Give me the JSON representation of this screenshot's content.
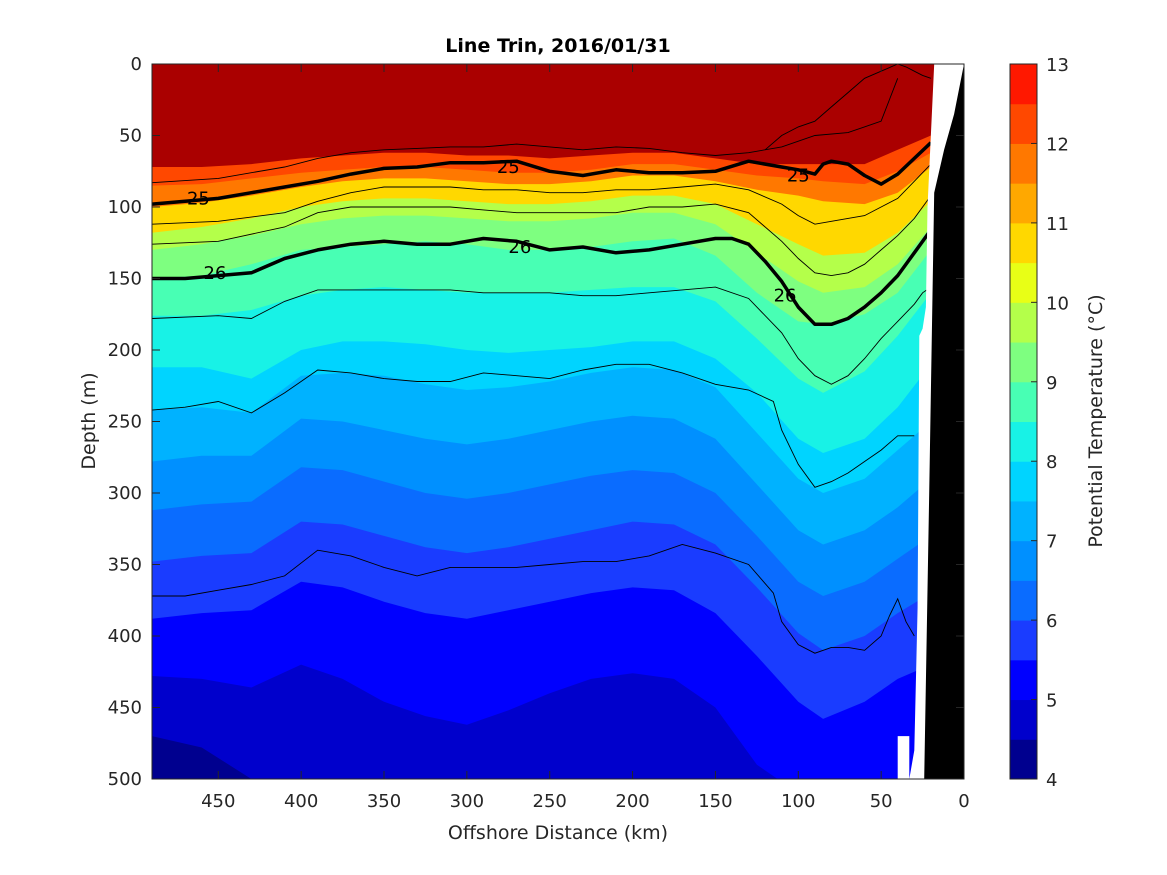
{
  "chart_data": {
    "type": "heatmap",
    "title": "Line Trin, 2016/01/31",
    "xlabel": "Offshore Distance (km)",
    "ylabel": "Depth (m)",
    "xlim": [
      490,
      0
    ],
    "ylim": [
      0,
      500
    ],
    "y_reversed": true,
    "x_ticks": [
      450,
      400,
      350,
      300,
      250,
      200,
      150,
      100,
      50,
      0
    ],
    "y_ticks": [
      0,
      50,
      100,
      150,
      200,
      250,
      300,
      350,
      400,
      450,
      500
    ],
    "colorbar": {
      "label": "Potential Temperature (°C)",
      "range": [
        4,
        13
      ],
      "step": 0.5,
      "ticks": [
        4,
        5,
        6,
        7,
        8,
        9,
        10,
        11,
        12,
        13
      ],
      "colors": [
        "#00008f",
        "#0000cc",
        "#0000ff",
        "#1a3cff",
        "#0a6cff",
        "#0090ff",
        "#00b2ff",
        "#00d4ff",
        "#18f2e6",
        "#48ffb4",
        "#7eff80",
        "#b4ff4a",
        "#e8ff16",
        "#ffd800",
        "#ffa800",
        "#ff7800",
        "#ff4800",
        "#ff1800",
        "#aa0000"
      ]
    },
    "isotherms_depth_m": [
      {
        "temp": 12.5,
        "depth": [
          72,
          72,
          70,
          66,
          64,
          62,
          62,
          64,
          64,
          66,
          64,
          62,
          62,
          66,
          70,
          70,
          70,
          70,
          60,
          50
        ]
      },
      {
        "temp": 12.0,
        "depth": [
          85,
          84,
          80,
          76,
          74,
          72,
          72,
          74,
          76,
          76,
          74,
          70,
          70,
          74,
          78,
          80,
          82,
          84,
          75,
          62
        ]
      },
      {
        "temp": 11.0,
        "depth": [
          100,
          97,
          92,
          86,
          82,
          80,
          80,
          82,
          84,
          84,
          82,
          78,
          78,
          82,
          88,
          92,
          96,
          98,
          90,
          72
        ]
      },
      {
        "temp": 10.0,
        "depth": [
          118,
          114,
          108,
          100,
          96,
          94,
          94,
          96,
          98,
          98,
          96,
          92,
          92,
          98,
          112,
          126,
          134,
          132,
          118,
          96
        ]
      },
      {
        "temp": 9.5,
        "depth": [
          130,
          126,
          120,
          112,
          108,
          106,
          106,
          108,
          110,
          110,
          108,
          104,
          104,
          112,
          132,
          152,
          160,
          156,
          140,
          114
        ]
      },
      {
        "temp": 9.0,
        "depth": [
          150,
          148,
          140,
          130,
          128,
          126,
          124,
          126,
          130,
          130,
          128,
          124,
          122,
          134,
          160,
          180,
          182,
          175,
          160,
          130
        ]
      },
      {
        "temp": 8.5,
        "depth": [
          176,
          176,
          172,
          162,
          158,
          156,
          158,
          160,
          160,
          160,
          158,
          156,
          156,
          166,
          192,
          220,
          230,
          215,
          190,
          160
        ]
      },
      {
        "temp": 8.0,
        "depth": [
          212,
          212,
          220,
          200,
          194,
          194,
          196,
          200,
          202,
          200,
          198,
          194,
          194,
          206,
          230,
          262,
          272,
          262,
          240,
          210
        ]
      },
      {
        "temp": 7.5,
        "depth": [
          242,
          240,
          244,
          218,
          216,
          218,
          224,
          228,
          226,
          222,
          216,
          212,
          214,
          226,
          258,
          290,
          300,
          290,
          270,
          250
        ]
      },
      {
        "temp": 7.0,
        "depth": [
          278,
          274,
          274,
          248,
          250,
          256,
          262,
          266,
          262,
          256,
          250,
          246,
          248,
          262,
          294,
          326,
          336,
          326,
          310,
          290
        ]
      },
      {
        "temp": 6.5,
        "depth": [
          312,
          308,
          306,
          282,
          284,
          292,
          300,
          304,
          300,
          294,
          288,
          284,
          286,
          300,
          330,
          362,
          372,
          362,
          346,
          330
        ]
      },
      {
        "temp": 6.0,
        "depth": [
          348,
          344,
          342,
          320,
          322,
          330,
          338,
          342,
          338,
          332,
          326,
          320,
          322,
          336,
          366,
          398,
          410,
          400,
          384,
          370
        ]
      },
      {
        "temp": 5.5,
        "depth": [
          388,
          384,
          382,
          362,
          366,
          376,
          384,
          388,
          382,
          376,
          370,
          366,
          368,
          384,
          414,
          446,
          458,
          446,
          430,
          420
        ]
      },
      {
        "temp": 5.0,
        "depth": [
          428,
          430,
          436,
          420,
          430,
          446,
          456,
          462,
          452,
          440,
          430,
          426,
          430,
          450,
          490,
          510,
          520,
          510,
          500,
          500
        ]
      },
      {
        "temp": 4.5,
        "depth": [
          470,
          478,
          500,
          520,
          520,
          520,
          520,
          520,
          520,
          520,
          520,
          520,
          520,
          520,
          520,
          520,
          520,
          520,
          520,
          520
        ]
      }
    ],
    "isotherm_x_km": [
      490,
      460,
      430,
      400,
      375,
      350,
      325,
      300,
      275,
      250,
      225,
      200,
      175,
      150,
      125,
      100,
      85,
      60,
      40,
      20
    ],
    "density_contours": [
      {
        "label": "25",
        "x": [
          490,
          470,
          450,
          430,
          410,
          390,
          370,
          350,
          330,
          310,
          290,
          270,
          250,
          230,
          210,
          190,
          170,
          150,
          130,
          110,
          100,
          90,
          85,
          80,
          70,
          60,
          50,
          40,
          30,
          20
        ],
        "depth": [
          98,
          96,
          94,
          90,
          86,
          82,
          77,
          73,
          72,
          69,
          69,
          68,
          75,
          78,
          74,
          76,
          76,
          75,
          68,
          72,
          74,
          77,
          70,
          68,
          70,
          78,
          84,
          77,
          66,
          55
        ]
      },
      {
        "label": "26",
        "x": [
          490,
          470,
          450,
          430,
          410,
          390,
          370,
          350,
          330,
          310,
          290,
          270,
          250,
          230,
          210,
          190,
          170,
          150,
          140,
          130,
          120,
          110,
          100,
          90,
          80,
          70,
          60,
          50,
          40,
          30,
          20
        ],
        "depth": [
          150,
          150,
          148,
          146,
          136,
          130,
          126,
          124,
          126,
          126,
          122,
          124,
          130,
          128,
          132,
          130,
          126,
          122,
          122,
          126,
          138,
          152,
          170,
          182,
          182,
          178,
          170,
          160,
          148,
          132,
          116
        ]
      }
    ],
    "contour_labels": [
      {
        "text": "25",
        "x": 462,
        "depth": 94
      },
      {
        "text": "25",
        "x": 275,
        "depth": 72
      },
      {
        "text": "25",
        "x": 100,
        "depth": 78
      },
      {
        "text": "26",
        "x": 452,
        "depth": 146
      },
      {
        "text": "26",
        "x": 268,
        "depth": 128
      },
      {
        "text": "26",
        "x": 108,
        "depth": 162
      }
    ],
    "thin_contours": [
      {
        "x": [
          490,
          450,
          410,
          390,
          370,
          350,
          330,
          310,
          290,
          270,
          250,
          230,
          210,
          190,
          170,
          150,
          130,
          110,
          90,
          70,
          50,
          40
        ],
        "depth": [
          83,
          80,
          72,
          66,
          62,
          60,
          59,
          58,
          58,
          56,
          58,
          60,
          58,
          59,
          62,
          64,
          62,
          58,
          50,
          48,
          40,
          10
        ]
      },
      {
        "x": [
          490,
          450,
          410,
          390,
          370,
          350,
          330,
          310,
          290,
          270,
          250,
          230,
          210,
          190,
          170,
          150,
          130,
          110,
          100,
          90,
          80,
          70,
          60,
          50,
          40,
          30,
          20
        ],
        "depth": [
          112,
          110,
          104,
          96,
          90,
          86,
          86,
          86,
          88,
          88,
          90,
          90,
          88,
          88,
          86,
          84,
          88,
          98,
          106,
          112,
          110,
          108,
          106,
          100,
          94,
          82,
          70
        ]
      },
      {
        "x": [
          490,
          450,
          410,
          390,
          370,
          350,
          330,
          310,
          290,
          270,
          250,
          230,
          210,
          190,
          170,
          150,
          130,
          110,
          100,
          90,
          80,
          70,
          60,
          50,
          40,
          30,
          20
        ],
        "depth": [
          126,
          124,
          114,
          104,
          100,
          100,
          100,
          100,
          102,
          104,
          104,
          104,
          104,
          100,
          100,
          98,
          104,
          124,
          136,
          146,
          148,
          146,
          140,
          130,
          120,
          108,
          92
        ]
      },
      {
        "x": [
          490,
          450,
          430,
          410,
          390,
          370,
          350,
          330,
          310,
          290,
          270,
          250,
          230,
          210,
          190,
          170,
          150,
          130,
          110,
          100,
          90,
          80,
          70,
          60,
          50,
          40,
          30,
          25,
          20
        ],
        "depth": [
          178,
          176,
          178,
          166,
          158,
          158,
          158,
          158,
          158,
          160,
          160,
          160,
          162,
          162,
          160,
          158,
          156,
          164,
          188,
          206,
          218,
          224,
          218,
          206,
          192,
          180,
          168,
          160,
          156
        ]
      },
      {
        "x": [
          490,
          470,
          450,
          430,
          410,
          390,
          370,
          350,
          330,
          310,
          290,
          270,
          250,
          230,
          210,
          190,
          170,
          150,
          130,
          115,
          110,
          100,
          90,
          80,
          70,
          60,
          50,
          40,
          30
        ],
        "depth": [
          242,
          240,
          236,
          244,
          230,
          214,
          216,
          220,
          222,
          222,
          216,
          218,
          220,
          214,
          210,
          210,
          216,
          224,
          228,
          236,
          256,
          280,
          296,
          292,
          286,
          278,
          270,
          260,
          260
        ]
      },
      {
        "x": [
          490,
          470,
          450,
          430,
          410,
          390,
          370,
          350,
          330,
          310,
          290,
          270,
          250,
          230,
          210,
          190,
          170,
          150,
          130,
          115,
          110,
          100,
          90,
          80,
          70,
          60,
          50,
          45,
          40,
          35,
          30
        ],
        "depth": [
          372,
          372,
          368,
          364,
          358,
          340,
          344,
          352,
          358,
          352,
          352,
          352,
          350,
          348,
          348,
          344,
          336,
          342,
          350,
          370,
          390,
          406,
          412,
          408,
          408,
          410,
          400,
          386,
          374,
          390,
          400
        ]
      },
      {
        "x": [
          40,
          35,
          30,
          25,
          20
        ],
        "depth": [
          0,
          2,
          5,
          8,
          10
        ]
      },
      {
        "x": [
          120,
          110,
          100,
          90,
          80,
          70,
          60,
          50,
          40
        ],
        "depth": [
          60,
          50,
          44,
          40,
          30,
          20,
          10,
          5,
          0
        ]
      }
    ],
    "topography_km": {
      "white_data_gap": {
        "x": [
          33,
          30,
          28,
          27,
          25,
          23,
          22,
          18,
          0,
          0,
          40,
          40,
          33
        ],
        "depth": [
          500,
          480,
          380,
          190,
          185,
          170,
          100,
          0,
          0,
          500,
          500,
          470,
          470
        ]
      },
      "seafloor_black": {
        "x": [
          24,
          21,
          18,
          12,
          6,
          0,
          0
        ],
        "depth": [
          500,
          300,
          90,
          60,
          35,
          0,
          500
        ]
      }
    },
    "data_gap_right_edge_km": 40
  }
}
